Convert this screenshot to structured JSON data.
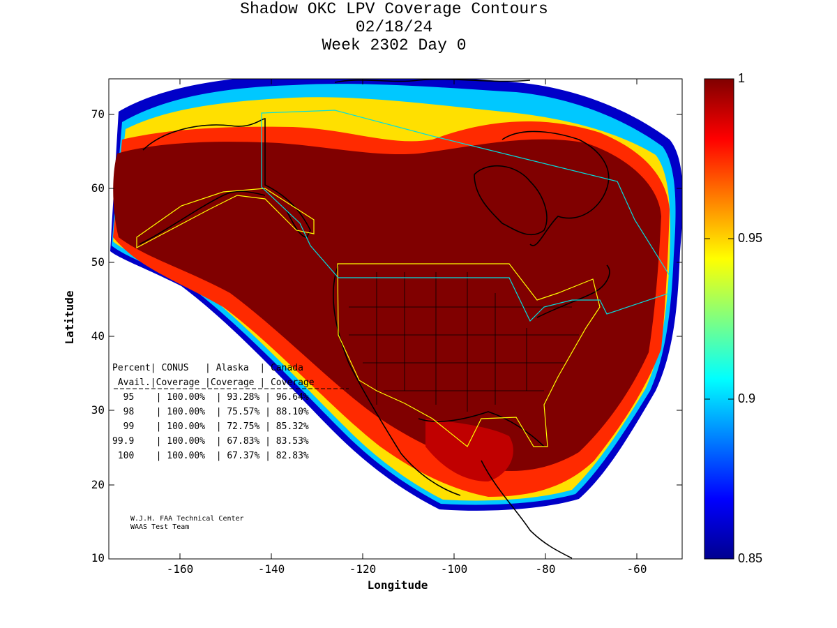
{
  "title": {
    "line1": "Shadow OKC LPV Coverage Contours",
    "line2": "02/18/24",
    "line3": "Week 2302 Day 0"
  },
  "chart_data": {
    "type": "heatmap",
    "title": "Shadow OKC LPV Coverage Contours",
    "xlabel": "Longitude",
    "ylabel": "Latitude",
    "xlim": [
      -175,
      -50
    ],
    "ylim": [
      10,
      75
    ],
    "x_ticks": [
      "-160",
      "-140",
      "-120",
      "-100",
      "-80",
      "-60"
    ],
    "y_ticks": [
      "70",
      "60",
      "50",
      "40",
      "30",
      "20",
      "10"
    ],
    "colorbar": {
      "range": [
        0.85,
        1
      ],
      "tick_labels": [
        "1",
        "0.95",
        "0.9",
        "0.85"
      ],
      "colormap": "jet"
    },
    "grid": false
  },
  "coverage_table": {
    "header1": "Percent| CONUS   | Alaska  | Canada",
    "header2": " Avail.|Coverage |Coverage | Coverage",
    "rows": [
      "  95    | 100.00%  | 93.28% | 96.64%",
      "  98    | 100.00%  | 75.57% | 88.10%",
      "  99    | 100.00%  | 72.75% | 85.32%",
      "99.9    | 100.00%  | 67.83% | 83.53%",
      " 100    | 100.00%  | 67.37% | 82.83%"
    ]
  },
  "credit": {
    "line1": "W.J.H. FAA Technical Center",
    "line2": "WAAS Test Team"
  }
}
